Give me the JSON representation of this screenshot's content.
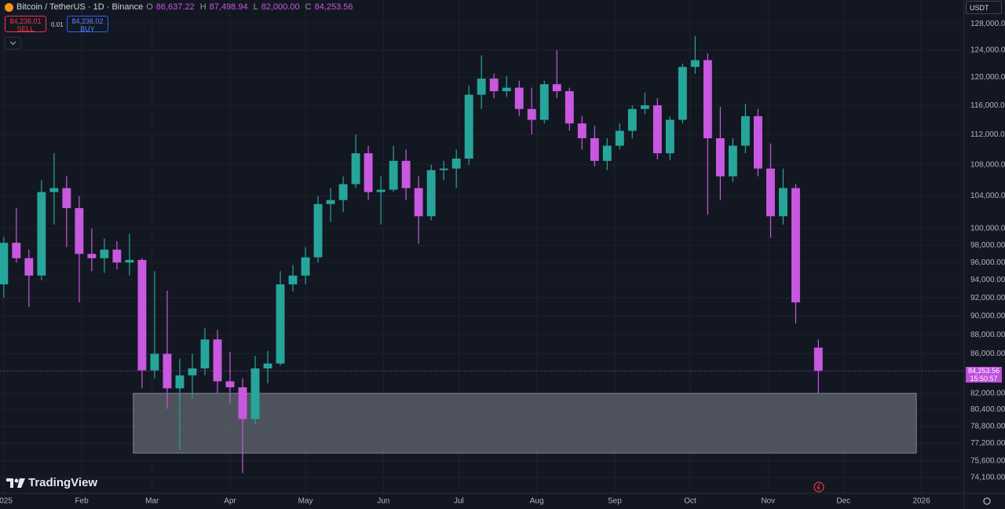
{
  "chart_data": {
    "type": "candlestick",
    "symbol": "Bitcoin / TetherUS · 1D · Binance",
    "ohlc_labels": [
      "O",
      "H",
      "L",
      "C"
    ],
    "ohlc_texts": [
      "86,637.22",
      "87,498.94",
      "82,000.00",
      "84,253.56"
    ],
    "sell_price": "84,236.01",
    "sell_label": "SELL",
    "spread": "0.01",
    "buy_price": "84,236.02",
    "buy_label": "BUY",
    "currency": "USDT",
    "price_tag": "84,253.56",
    "countdown": "15:50:57",
    "brand": "TradingView",
    "up_color": "#26a69a",
    "down_color": "#c858e0",
    "log_scale": true,
    "grid": true,
    "xlim": [
      -1.5,
      382
    ],
    "ylim": [
      72700,
      131700
    ],
    "xticks": [
      {
        "value": 0,
        "label": "2025"
      },
      {
        "value": 31,
        "label": "Feb"
      },
      {
        "value": 59,
        "label": "Mar"
      },
      {
        "value": 90,
        "label": "Apr"
      },
      {
        "value": 120,
        "label": "May"
      },
      {
        "value": 151,
        "label": "Jun"
      },
      {
        "value": 181,
        "label": "Jul"
      },
      {
        "value": 212,
        "label": "Aug"
      },
      {
        "value": 243,
        "label": "Sep"
      },
      {
        "value": 273,
        "label": "Oct"
      },
      {
        "value": 304,
        "label": "Nov"
      },
      {
        "value": 334,
        "label": "Dec"
      },
      {
        "value": 365,
        "label": "2026"
      }
    ],
    "yticks": [
      {
        "value": 128000,
        "label": "128,000.00"
      },
      {
        "value": 124000,
        "label": "124,000.00"
      },
      {
        "value": 120000,
        "label": "120,000.00"
      },
      {
        "value": 116000,
        "label": "116,000.00"
      },
      {
        "value": 112000,
        "label": "112,000.00"
      },
      {
        "value": 108000,
        "label": "108,000.00"
      },
      {
        "value": 104000,
        "label": "104,000.00"
      },
      {
        "value": 100000,
        "label": "100,000.00"
      },
      {
        "value": 98000,
        "label": "98,000.00"
      },
      {
        "value": 96000,
        "label": "96,000.00"
      },
      {
        "value": 94000,
        "label": "94,000.00"
      },
      {
        "value": 92000,
        "label": "92,000.00"
      },
      {
        "value": 90000,
        "label": "90,000.00"
      },
      {
        "value": 88000,
        "label": "88,000.00"
      },
      {
        "value": 86000,
        "label": "86,000.00"
      },
      {
        "value": 82000,
        "label": "82,000.00"
      },
      {
        "value": 80400,
        "label": "80,400.00"
      },
      {
        "value": 78800,
        "label": "78,800.00"
      },
      {
        "value": 77200,
        "label": "77,200.00"
      },
      {
        "value": 75600,
        "label": "75,600.00"
      },
      {
        "value": 74100,
        "label": "74,100.00"
      }
    ],
    "zone": {
      "x": [
        51.5,
        363
      ],
      "y": [
        76300,
        82000
      ]
    },
    "x": [
      0,
      5,
      10,
      15,
      20,
      25,
      30,
      35,
      40,
      45,
      50,
      55,
      60,
      65,
      70,
      75,
      80,
      85,
      90,
      95,
      100,
      105,
      110,
      115,
      120,
      125,
      130,
      135,
      140,
      145,
      150,
      155,
      160,
      165,
      170,
      175,
      180,
      185,
      190,
      195,
      200,
      205,
      210,
      215,
      220,
      225,
      230,
      235,
      240,
      245,
      250,
      255,
      260,
      265,
      270,
      275,
      280,
      285,
      290,
      295,
      300,
      305,
      310,
      315,
      324
    ],
    "open": [
      93500,
      98300,
      96500,
      94500,
      104500,
      105000,
      102500,
      97000,
      96500,
      97500,
      96000,
      96300,
      84300,
      86000,
      82500,
      83800,
      84500,
      87500,
      83200,
      82600,
      79500,
      84500,
      85000,
      93500,
      94500,
      96600,
      103000,
      103500,
      105500,
      109500,
      104500,
      104800,
      108500,
      105000,
      101500,
      107300,
      107500,
      108800,
      117500,
      119800,
      118000,
      118500,
      115500,
      114000,
      119000,
      118000,
      113500,
      111500,
      108500,
      110500,
      112500,
      115500,
      116000,
      109500,
      114000,
      121500,
      122500,
      111500,
      106500,
      110500,
      114500,
      107500,
      101500,
      105000,
      86637.22
    ],
    "high": [
      99000,
      102500,
      97500,
      106000,
      109500,
      106500,
      104000,
      100000,
      98800,
      98500,
      99400,
      96500,
      95000,
      92800,
      85500,
      86000,
      88700,
      88500,
      86200,
      83500,
      85800,
      86300,
      95000,
      95700,
      97800,
      104000,
      105000,
      106500,
      112000,
      110500,
      106500,
      110500,
      110000,
      106500,
      108000,
      108500,
      110000,
      118800,
      123200,
      120500,
      120200,
      119500,
      118500,
      119500,
      124000,
      118500,
      114500,
      113200,
      111500,
      113500,
      116000,
      117800,
      117000,
      114500,
      122000,
      126100,
      123500,
      115800,
      111500,
      116200,
      115500,
      110800,
      107500,
      105500,
      87498.94
    ],
    "low": [
      92000,
      96000,
      91000,
      94000,
      100500,
      97800,
      91500,
      95000,
      94800,
      95200,
      94500,
      82500,
      83500,
      80500,
      76600,
      81500,
      83800,
      82000,
      81000,
      74500,
      79000,
      83000,
      84800,
      92700,
      93500,
      96000,
      100800,
      102000,
      105000,
      103500,
      100500,
      104500,
      103500,
      98200,
      101000,
      106000,
      105000,
      108000,
      115500,
      117000,
      117200,
      114500,
      112000,
      113500,
      117000,
      112500,
      110000,
      107800,
      107300,
      110000,
      111500,
      114800,
      108700,
      108600,
      113500,
      120500,
      101700,
      103500,
      105800,
      109500,
      106500,
      98900,
      100500,
      89200,
      82000
    ],
    "close": [
      98300,
      96500,
      94500,
      104500,
      105000,
      102500,
      97000,
      96500,
      97500,
      96000,
      96300,
      84300,
      86000,
      82500,
      83800,
      84500,
      87500,
      83200,
      82600,
      79500,
      84500,
      85000,
      93500,
      94500,
      96600,
      103000,
      103500,
      105500,
      109500,
      104500,
      104800,
      108500,
      105000,
      101500,
      107300,
      107500,
      108800,
      117500,
      119800,
      118000,
      118500,
      115500,
      114000,
      119000,
      118000,
      113500,
      111500,
      108500,
      110500,
      112500,
      115500,
      116000,
      109500,
      114000,
      121500,
      122500,
      111500,
      106500,
      110500,
      114500,
      107500,
      101500,
      105000,
      91500,
      84253.56
    ]
  }
}
